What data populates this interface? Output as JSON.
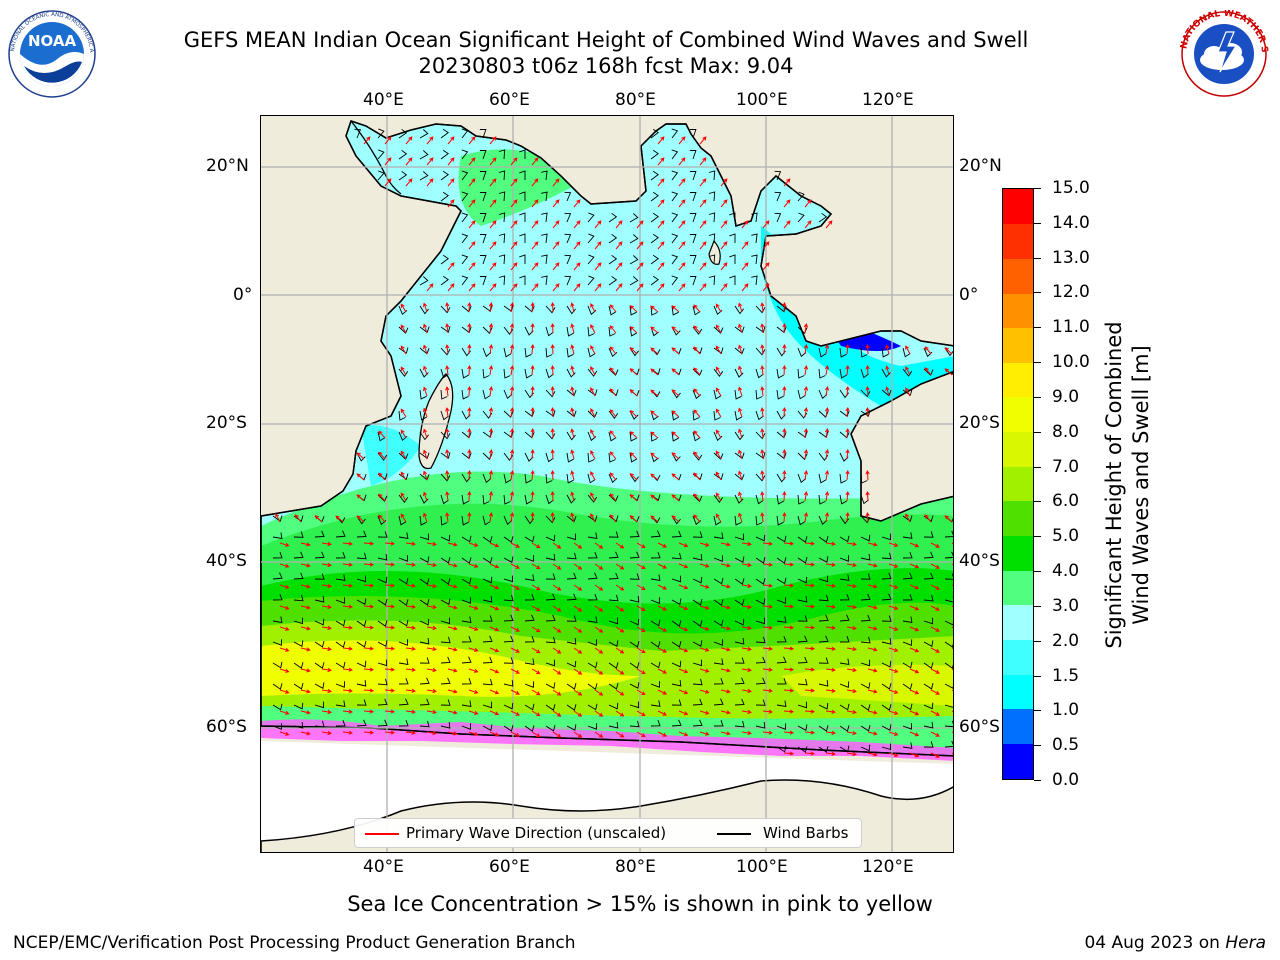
{
  "header": {
    "title_line1": "GEFS MEAN Indian Ocean Significant Height of Combined Wind Waves and Swell",
    "title_line2": "20230803 t06z 168h fcst   Max: 9.04"
  },
  "logos": {
    "left": {
      "icon": "noaa-logo-icon",
      "text": "NOAA",
      "ring_text": "NATIONAL OCEANIC AND ATMOSPHERIC ADMINISTRATION · U.S. DEPARTMENT OF COMMERCE"
    },
    "right": {
      "icon": "nws-logo-icon",
      "ring_text": "NATIONAL WEATHER SERVICE"
    }
  },
  "map": {
    "lon_ticks_top": [
      "40°E",
      "60°E",
      "80°E",
      "100°E",
      "120°E"
    ],
    "lon_ticks_bottom": [
      "40°E",
      "60°E",
      "80°E",
      "100°E",
      "120°E"
    ],
    "lat_ticks_left": [
      "20°N",
      "0°",
      "20°S",
      "40°S",
      "60°S"
    ],
    "lat_ticks_right": [
      "20°N",
      "0°",
      "20°S",
      "40°S",
      "60°S"
    ],
    "lon_range": [
      20,
      130
    ],
    "lat_range": [
      -75,
      28
    ],
    "legend": {
      "wave_label": "Primary Wave Direction (unscaled)",
      "wave_color": "#ff0000",
      "barb_label": "Wind Barbs",
      "barb_color": "#000000"
    }
  },
  "colorbar": {
    "title_line1": "Significant Height of Combined",
    "title_line2": "Wind Waves and Swell [m]",
    "min": 0.0,
    "max": 15.0,
    "ticks": [
      "0.0",
      "0.5",
      "1.0",
      "1.5",
      "2.0",
      "3.0",
      "4.0",
      "5.0",
      "6.0",
      "7.0",
      "8.0",
      "9.0",
      "10.0",
      "11.0",
      "12.0",
      "13.0",
      "14.0",
      "15.0"
    ],
    "colors": [
      "#0000ff",
      "#0070ff",
      "#00ffff",
      "#40ffff",
      "#a0ffff",
      "#50ff80",
      "#00e000",
      "#50e000",
      "#a0f000",
      "#d8f800",
      "#f0ff00",
      "#ffee00",
      "#ffc000",
      "#ff9000",
      "#ff6000",
      "#ff3000",
      "#ff0000"
    ]
  },
  "footer": {
    "ice_note": "Sea Ice Concentration > 15% is shown in pink to yellow",
    "left": "NCEP/EMC/Verification Post Processing Product Generation Branch",
    "date": "04 Aug 2023 on ",
    "system": "Hera"
  }
}
